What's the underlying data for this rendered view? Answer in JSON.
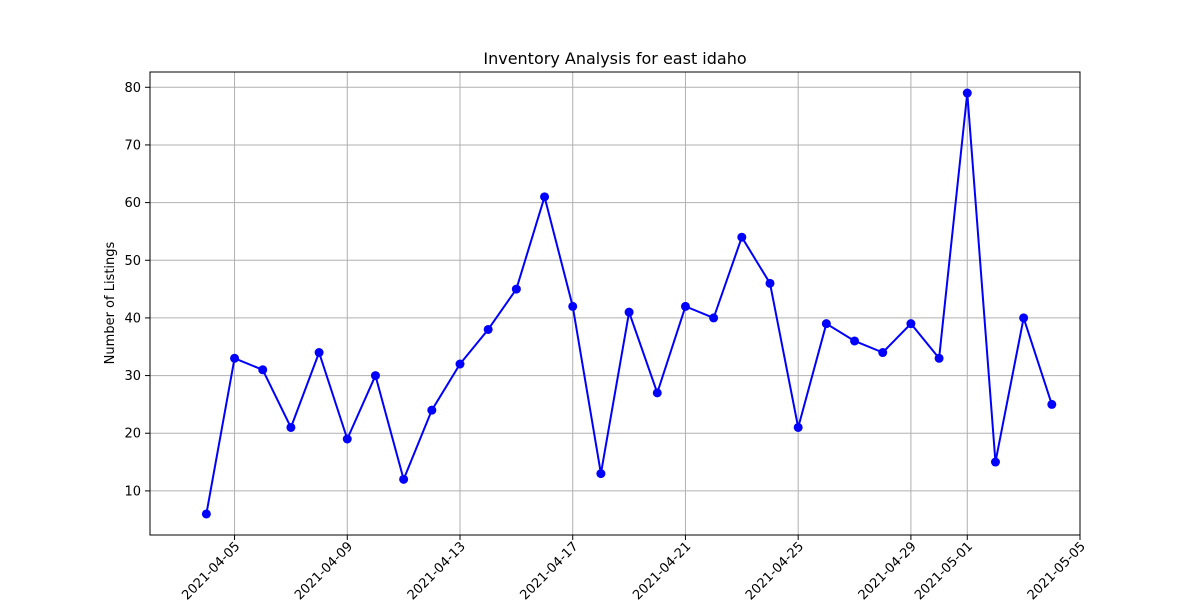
{
  "chart_data": {
    "type": "line",
    "title": "Inventory Analysis for east idaho",
    "xlabel": "",
    "ylabel": "Number of Listings",
    "grid": true,
    "line_color": "#0000ff",
    "marker": "circle",
    "x": [
      "2021-04-04",
      "2021-04-05",
      "2021-04-06",
      "2021-04-07",
      "2021-04-08",
      "2021-04-09",
      "2021-04-10",
      "2021-04-11",
      "2021-04-12",
      "2021-04-13",
      "2021-04-14",
      "2021-04-15",
      "2021-04-16",
      "2021-04-17",
      "2021-04-18",
      "2021-04-19",
      "2021-04-20",
      "2021-04-21",
      "2021-04-22",
      "2021-04-23",
      "2021-04-24",
      "2021-04-25",
      "2021-04-26",
      "2021-04-27",
      "2021-04-28",
      "2021-04-29",
      "2021-04-30",
      "2021-05-01",
      "2021-05-02",
      "2021-05-03",
      "2021-05-04"
    ],
    "values": [
      6,
      33,
      31,
      21,
      34,
      19,
      30,
      12,
      24,
      32,
      38,
      45,
      61,
      42,
      13,
      41,
      27,
      42,
      40,
      54,
      46,
      21,
      39,
      36,
      34,
      39,
      33,
      79,
      15,
      40,
      25
    ],
    "xlim": [
      "2021-04-02",
      "2021-05-05"
    ],
    "ylim": [
      2.35,
      82.65
    ],
    "x_ticks": [
      "2021-04-05",
      "2021-04-09",
      "2021-04-13",
      "2021-04-17",
      "2021-04-21",
      "2021-04-25",
      "2021-04-29",
      "2021-05-01",
      "2021-05-05"
    ],
    "y_ticks": [
      10,
      20,
      30,
      40,
      50,
      60,
      70,
      80
    ]
  }
}
